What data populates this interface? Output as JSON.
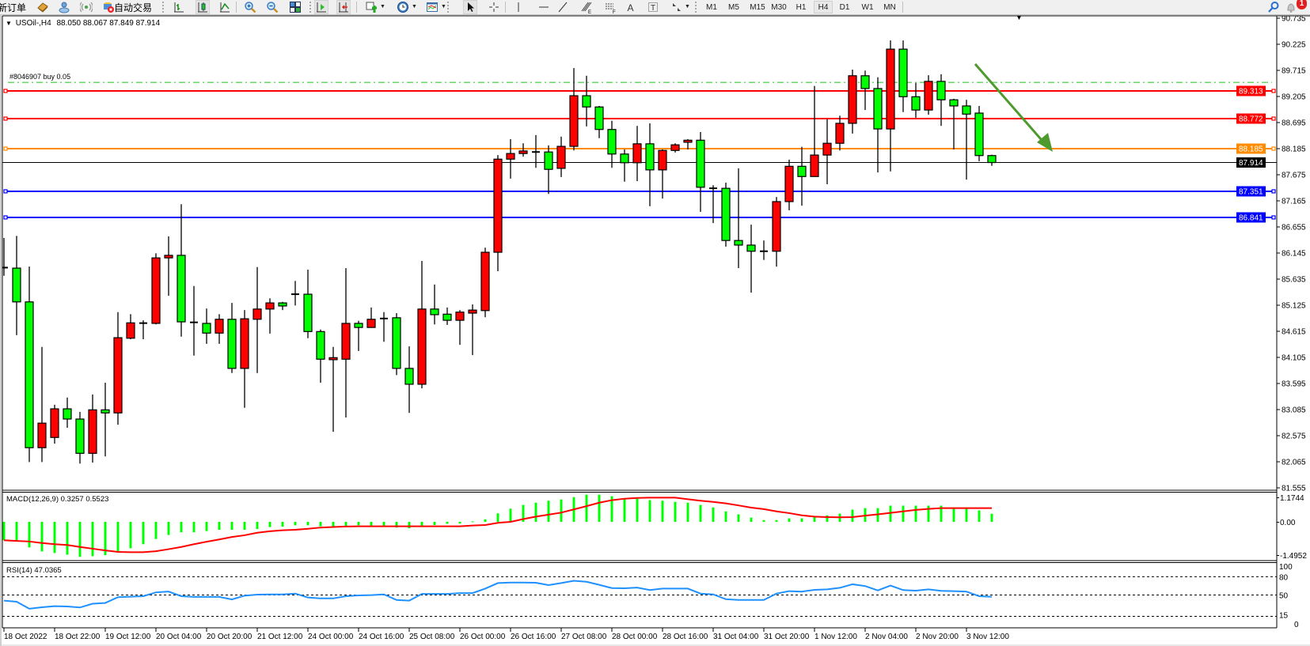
{
  "toolbar": {
    "new_order_label": "新订单",
    "auto_trading_label": "自动交易",
    "tools": [
      {
        "icon": "book-icon"
      },
      {
        "icon": "cloud-user-icon"
      },
      {
        "icon": "signal-antenna-icon"
      },
      {
        "icon": "auto-trading-icon"
      },
      {
        "icon": "bar-chart-icon"
      },
      {
        "icon": "candlestick-chart-icon",
        "active": true
      },
      {
        "icon": "line-chart-icon"
      },
      {
        "icon": "zoom-in-icon"
      },
      {
        "icon": "zoom-out-icon"
      },
      {
        "icon": "tile-windows-icon"
      },
      {
        "icon": "auto-scroll-icon",
        "active": true
      },
      {
        "icon": "chart-shift-icon",
        "active": true
      },
      {
        "icon": "add-indicator-icon",
        "dropdown": true
      },
      {
        "icon": "periods-clock-icon",
        "dropdown": true
      },
      {
        "icon": "templates-icon",
        "dropdown": true
      },
      {
        "icon": "cursor-icon",
        "active": true
      },
      {
        "icon": "crosshair-icon"
      },
      {
        "icon": "vertical-line-icon"
      },
      {
        "icon": "horizontal-line-icon"
      },
      {
        "icon": "trendline-icon"
      },
      {
        "icon": "fibonacci-retracement-icon"
      },
      {
        "icon": "fibonacci-lines-icon"
      },
      {
        "icon": "text-icon"
      },
      {
        "icon": "text-label-icon"
      },
      {
        "icon": "arrows-icon",
        "dropdown": true
      }
    ],
    "timeframes": [
      "M1",
      "M5",
      "M15",
      "M30",
      "H1",
      "H4",
      "D1",
      "W1",
      "MN"
    ],
    "active_timeframe": "H4",
    "search_icon": "search-icon",
    "notification_icon": "notification-bell-icon",
    "notification_count": "1"
  },
  "chart": {
    "title": "USOil-,H4",
    "ohlc_readout": "88.050 88.067 87.849 87.914",
    "order_label": "#8046907 buy 0.05"
  },
  "chart_data": {
    "type": "candlestick",
    "symbol": "USOil-",
    "timeframe": "H4",
    "ylim": [
      81.555,
      90.735
    ],
    "grid": false,
    "up_color": "#FF0000",
    "down_color": "#00FF00",
    "price_ticks": [
      "90.735",
      "90.225",
      "89.715",
      "89.205",
      "88.695",
      "88.185",
      "87.675",
      "87.165",
      "86.655",
      "86.145",
      "85.635",
      "85.125",
      "84.615",
      "84.105",
      "83.595",
      "83.085",
      "82.575",
      "82.065",
      "81.555"
    ],
    "time_labels": [
      "18 Oct 2022",
      "18 Oct 22:00",
      "19 Oct 12:00",
      "20 Oct 04:00",
      "20 Oct 20:00",
      "21 Oct 12:00",
      "24 Oct 00:00",
      "24 Oct 16:00",
      "25 Oct 08:00",
      "26 Oct 00:00",
      "26 Oct 16:00",
      "27 Oct 08:00",
      "28 Oct 00:00",
      "28 Oct 16:00",
      "31 Oct 04:00",
      "31 Oct 20:00",
      "1 Nov 12:00",
      "2 Nov 04:00",
      "2 Nov 20:00",
      "3 Nov 12:00"
    ],
    "ohlc_fields": [
      "open",
      "high",
      "low",
      "close"
    ],
    "ohlc": [
      [
        85.87,
        86.44,
        85.7,
        85.85
      ],
      [
        85.85,
        86.48,
        84.54,
        85.19
      ],
      [
        85.19,
        85.88,
        82.06,
        82.34
      ],
      [
        82.34,
        84.31,
        82.06,
        82.82
      ],
      [
        82.54,
        83.18,
        82.42,
        83.1
      ],
      [
        83.1,
        83.32,
        82.73,
        82.9
      ],
      [
        82.9,
        83.04,
        82.03,
        82.23
      ],
      [
        82.23,
        83.38,
        82.05,
        83.08
      ],
      [
        83.08,
        83.61,
        82.17,
        83.02
      ],
      [
        83.02,
        84.99,
        82.79,
        84.49
      ],
      [
        84.48,
        84.95,
        84.46,
        84.78
      ],
      [
        84.78,
        84.83,
        84.46,
        84.77
      ],
      [
        84.77,
        86.14,
        84.75,
        86.05
      ],
      [
        86.05,
        86.47,
        85.31,
        86.1
      ],
      [
        86.1,
        87.1,
        84.51,
        84.8
      ],
      [
        84.8,
        85.5,
        84.14,
        84.78
      ],
      [
        84.77,
        85.06,
        84.37,
        84.58
      ],
      [
        84.58,
        84.95,
        84.37,
        84.85
      ],
      [
        84.85,
        85.17,
        83.8,
        83.89
      ],
      [
        83.89,
        85.03,
        83.12,
        84.86
      ],
      [
        84.85,
        85.87,
        83.8,
        85.05
      ],
      [
        85.05,
        85.26,
        84.57,
        85.17
      ],
      [
        85.17,
        85.19,
        85.03,
        85.11
      ],
      [
        85.34,
        85.6,
        85.12,
        85.34
      ],
      [
        85.34,
        85.82,
        84.48,
        84.61
      ],
      [
        84.61,
        84.65,
        83.61,
        84.07
      ],
      [
        84.06,
        84.31,
        82.65,
        84.1
      ],
      [
        84.07,
        85.85,
        82.93,
        84.77
      ],
      [
        84.77,
        84.82,
        84.23,
        84.69
      ],
      [
        84.69,
        85.08,
        84.69,
        84.85
      ],
      [
        84.85,
        84.99,
        84.41,
        84.88
      ],
      [
        84.88,
        84.97,
        83.76,
        83.89
      ],
      [
        83.89,
        84.32,
        83.02,
        83.58
      ],
      [
        83.58,
        85.99,
        83.5,
        85.05
      ],
      [
        85.05,
        85.53,
        84.75,
        84.94
      ],
      [
        84.95,
        85.08,
        84.74,
        84.83
      ],
      [
        84.83,
        85.03,
        84.35,
        84.99
      ],
      [
        84.97,
        85.14,
        84.15,
        85.03
      ],
      [
        85.02,
        86.25,
        84.89,
        86.16
      ],
      [
        86.16,
        88.06,
        85.79,
        87.98
      ],
      [
        87.98,
        88.37,
        87.6,
        88.09
      ],
      [
        88.09,
        88.29,
        88.03,
        88.14
      ],
      [
        88.12,
        88.45,
        87.81,
        88.12
      ],
      [
        88.12,
        88.25,
        87.3,
        87.78
      ],
      [
        87.8,
        88.42,
        87.63,
        88.23
      ],
      [
        88.23,
        89.76,
        88.15,
        89.22
      ],
      [
        89.22,
        89.61,
        88.62,
        89.0
      ],
      [
        89.0,
        89.02,
        88.39,
        88.56
      ],
      [
        88.56,
        88.73,
        87.81,
        88.08
      ],
      [
        88.08,
        88.17,
        87.54,
        87.91
      ],
      [
        87.91,
        88.63,
        87.55,
        88.28
      ],
      [
        88.28,
        88.68,
        87.06,
        87.77
      ],
      [
        87.77,
        88.17,
        87.21,
        88.15
      ],
      [
        88.15,
        88.29,
        88.11,
        88.26
      ],
      [
        88.31,
        88.37,
        88.17,
        88.35
      ],
      [
        88.35,
        88.51,
        86.95,
        87.43
      ],
      [
        87.41,
        87.47,
        86.73,
        87.41
      ],
      [
        87.41,
        87.52,
        86.27,
        86.39
      ],
      [
        86.39,
        87.8,
        85.85,
        86.3
      ],
      [
        86.3,
        86.7,
        85.37,
        86.18
      ],
      [
        86.18,
        86.39,
        86.01,
        86.18
      ],
      [
        86.18,
        87.24,
        85.88,
        87.15
      ],
      [
        87.15,
        87.97,
        86.98,
        87.84
      ],
      [
        87.84,
        88.22,
        87.07,
        87.64
      ],
      [
        87.64,
        89.41,
        87.64,
        88.06
      ],
      [
        88.06,
        88.76,
        87.49,
        88.29
      ],
      [
        88.29,
        88.83,
        88.15,
        88.68
      ],
      [
        88.68,
        89.73,
        88.48,
        89.61
      ],
      [
        89.61,
        89.71,
        88.94,
        89.36
      ],
      [
        89.36,
        89.58,
        87.72,
        88.57
      ],
      [
        88.57,
        90.3,
        87.74,
        90.13
      ],
      [
        90.13,
        90.3,
        88.9,
        89.2
      ],
      [
        89.2,
        89.47,
        88.79,
        88.94
      ],
      [
        88.94,
        89.62,
        88.85,
        89.5
      ],
      [
        89.5,
        89.64,
        88.63,
        89.14
      ],
      [
        89.14,
        89.16,
        88.17,
        89.02
      ],
      [
        89.02,
        89.14,
        87.58,
        88.86
      ],
      [
        88.88,
        89.02,
        87.94,
        88.05
      ],
      [
        88.05,
        88.067,
        87.849,
        87.914
      ]
    ],
    "current_price": {
      "value": "87.914",
      "color": "#000000"
    },
    "levels": [
      {
        "price": "89.313",
        "color": "#FF0000"
      },
      {
        "price": "88.772",
        "color": "#FF0000"
      },
      {
        "price": "88.185",
        "color": "#FF8C00"
      },
      {
        "price": "87.351",
        "color": "#0000FF"
      },
      {
        "price": "86.841",
        "color": "#0000FF"
      }
    ],
    "order_line": {
      "price": 89.48,
      "color": "#32CD32"
    },
    "arrow_color": "#4E9A2E",
    "macd": {
      "label": "MACD(12,26,9) 0.3257 0.5523",
      "ylim": [
        -1.4952,
        1.1744
      ],
      "axis_labels": [
        "1.1744",
        "0.00",
        "-1.4952"
      ],
      "hist_color": "#00FF00",
      "signal_color": "#FF0000",
      "histogram": [
        -0.74,
        -0.79,
        -1.03,
        -1.19,
        -1.25,
        -1.32,
        -1.41,
        -1.38,
        -1.34,
        -1.19,
        -1.06,
        -0.9,
        -0.69,
        -0.53,
        -0.42,
        -0.42,
        -0.37,
        -0.32,
        -0.32,
        -0.32,
        -0.29,
        -0.21,
        -0.19,
        -0.14,
        -0.14,
        -0.18,
        -0.19,
        -0.19,
        -0.14,
        -0.16,
        -0.19,
        -0.23,
        -0.26,
        -0.21,
        -0.13,
        -0.08,
        -0.07,
        0.02,
        0.1,
        0.34,
        0.53,
        0.68,
        0.77,
        0.85,
        0.9,
        0.99,
        1.09,
        1.09,
        1.03,
        0.95,
        0.93,
        0.87,
        0.85,
        0.8,
        0.77,
        0.68,
        0.58,
        0.42,
        0.3,
        0.17,
        0.07,
        0.07,
        0.14,
        0.14,
        0.23,
        0.26,
        0.33,
        0.49,
        0.55,
        0.55,
        0.65,
        0.65,
        0.65,
        0.65,
        0.65,
        0.58,
        0.58,
        0.46,
        0.3257
      ],
      "signal": [
        -0.74,
        -0.77,
        -0.79,
        -0.85,
        -0.9,
        -0.93,
        -1.01,
        -1.08,
        -1.15,
        -1.21,
        -1.22,
        -1.22,
        -1.18,
        -1.1,
        -1.01,
        -0.9,
        -0.8,
        -0.71,
        -0.61,
        -0.54,
        -0.44,
        -0.38,
        -0.34,
        -0.32,
        -0.28,
        -0.23,
        -0.21,
        -0.19,
        -0.18,
        -0.18,
        -0.18,
        -0.18,
        -0.18,
        -0.18,
        -0.18,
        -0.18,
        -0.18,
        -0.15,
        -0.13,
        -0.04,
        0.0,
        0.11,
        0.21,
        0.29,
        0.37,
        0.5,
        0.63,
        0.77,
        0.87,
        0.93,
        0.96,
        0.97,
        0.97,
        0.97,
        0.91,
        0.85,
        0.8,
        0.74,
        0.66,
        0.57,
        0.51,
        0.42,
        0.35,
        0.26,
        0.21,
        0.19,
        0.18,
        0.19,
        0.25,
        0.3,
        0.36,
        0.42,
        0.48,
        0.52,
        0.55,
        0.55,
        0.55,
        0.55,
        0.5523
      ]
    },
    "rsi": {
      "label": "RSI(14) 47.0365",
      "ylim": [
        0,
        100
      ],
      "levels": [
        80,
        50,
        15
      ],
      "axis_labels": [
        "100",
        "80",
        "50",
        "15",
        "0"
      ],
      "color": "#1E90FF",
      "values": [
        40.7,
        39.0,
        27.4,
        29.9,
        31.6,
        31.1,
        29.5,
        35.7,
        36.9,
        46.5,
        47.3,
        48.1,
        54.3,
        55.6,
        48.1,
        46.9,
        46.9,
        46.9,
        42.7,
        48.9,
        50.6,
        51.0,
        51.0,
        52.3,
        46.0,
        44.4,
        44.4,
        48.1,
        49.4,
        49.8,
        51.0,
        41.9,
        40.7,
        51.8,
        51.8,
        51.8,
        53.1,
        53.1,
        60.5,
        69.6,
        70.5,
        70.5,
        70.1,
        66.3,
        69.6,
        73.4,
        71.7,
        66.7,
        61.4,
        61.0,
        62.2,
        58.1,
        60.5,
        60.5,
        60.5,
        52.3,
        51.0,
        43.1,
        41.9,
        41.9,
        41.9,
        52.3,
        56.4,
        55.6,
        58.5,
        59.3,
        61.8,
        67.6,
        64.7,
        57.6,
        65.5,
        58.1,
        57.2,
        59.3,
        56.8,
        56.4,
        55.6,
        48.1,
        47.0365
      ]
    }
  }
}
